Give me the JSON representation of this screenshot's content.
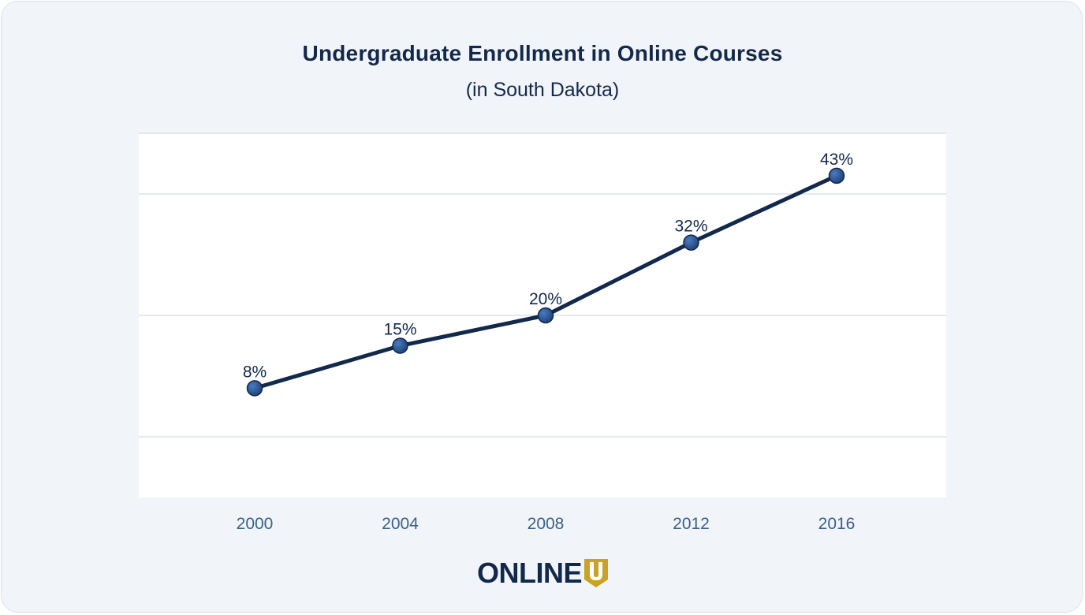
{
  "header": {
    "title": "Undergraduate Enrollment in Online Courses",
    "subtitle": "(in South Dakota)"
  },
  "logo": {
    "text": "ONLINE",
    "mark_text": "U",
    "colors": {
      "text": "#13294b",
      "mark": "#c9a227"
    }
  },
  "colors": {
    "line": "#13294b",
    "marker": "#2d5a99",
    "grid": "#d9e2ec",
    "tick_label": "#3b5f8a",
    "background": "#f1f5f9"
  },
  "chart_data": {
    "type": "line",
    "title": "Undergraduate Enrollment in Online Courses",
    "subtitle": "(in South Dakota)",
    "categories": [
      "2000",
      "2004",
      "2008",
      "2012",
      "2016"
    ],
    "values": [
      8,
      15,
      20,
      32,
      43
    ],
    "data_labels": [
      "8%",
      "15%",
      "20%",
      "32%",
      "43%"
    ],
    "xlabel": "",
    "ylabel": "",
    "ylim": [
      -10,
      50
    ],
    "grid": true,
    "legend": "none"
  }
}
